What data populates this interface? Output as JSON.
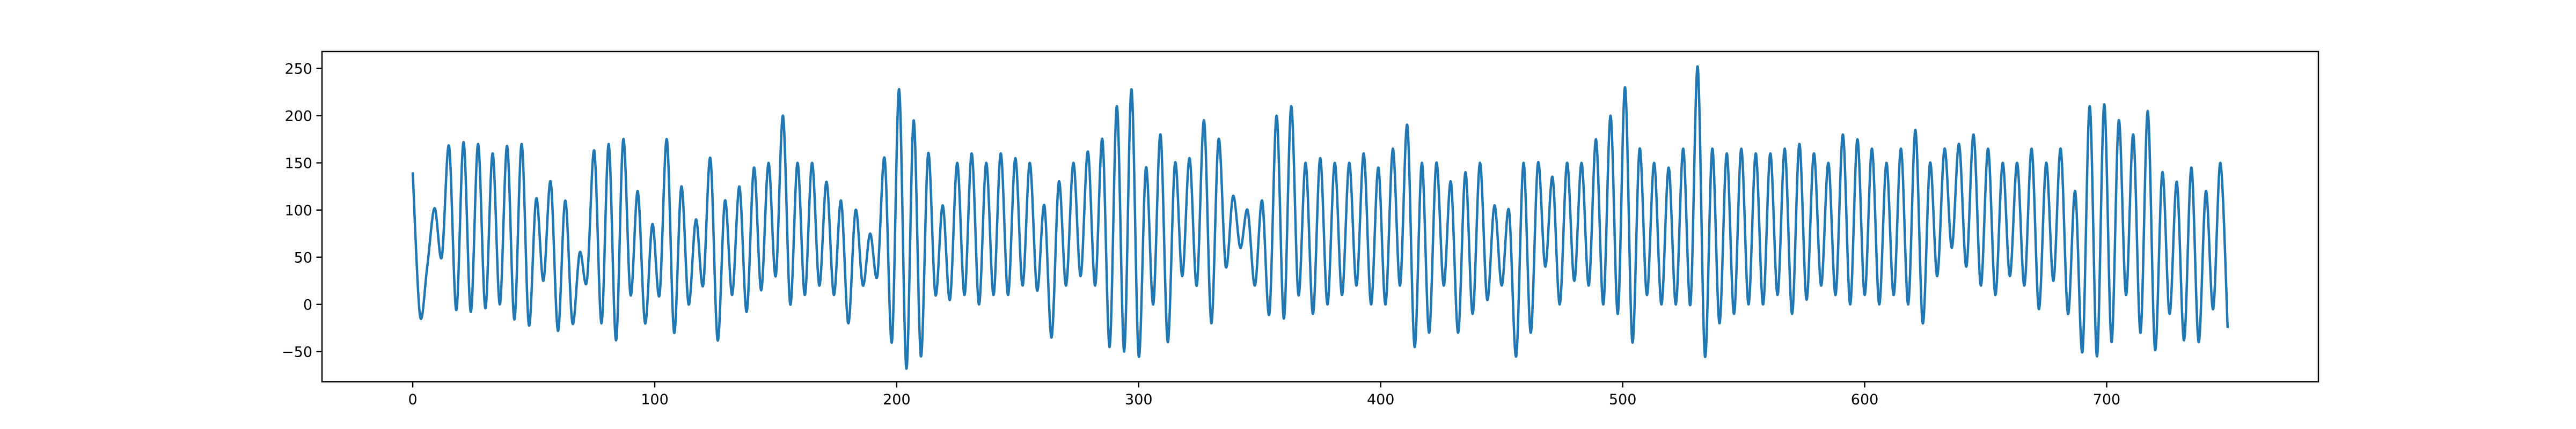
{
  "chart_data": {
    "type": "line",
    "title": "",
    "xlabel": "",
    "ylabel": "",
    "xlim": [
      -37.5,
      787.5
    ],
    "ylim": [
      -82,
      268
    ],
    "xticks": [
      0,
      100,
      200,
      300,
      400,
      500,
      600,
      700
    ],
    "xtick_labels": [
      "0",
      "100",
      "200",
      "300",
      "400",
      "500",
      "600",
      "700"
    ],
    "yticks": [
      -50,
      0,
      50,
      100,
      150,
      200,
      250
    ],
    "ytick_labels": [
      "−50",
      "0",
      "50",
      "100",
      "150",
      "200",
      "250"
    ],
    "grid": false,
    "legend": "none",
    "series": [
      {
        "color": "#1f77b4",
        "x_start": 0,
        "x_step": 3,
        "values": [
          140,
          -12,
          40,
          102,
          50,
          168,
          -6,
          172,
          -8,
          170,
          -4,
          160,
          0,
          168,
          -16,
          170,
          -22,
          112,
          25,
          130,
          -28,
          110,
          -20,
          55,
          25,
          163,
          -20,
          170,
          -38,
          175,
          10,
          120,
          -20,
          85,
          10,
          175,
          -30,
          125,
          0,
          90,
          20,
          155,
          -38,
          110,
          10,
          125,
          -8,
          145,
          15,
          150,
          30,
          200,
          0,
          150,
          10,
          150,
          20,
          130,
          10,
          110,
          -20,
          100,
          20,
          75,
          30,
          155,
          -40,
          228,
          -68,
          195,
          -55,
          160,
          10,
          105,
          5,
          150,
          10,
          160,
          0,
          150,
          10,
          160,
          10,
          155,
          20,
          150,
          15,
          105,
          -35,
          130,
          20,
          150,
          30,
          162,
          20,
          175,
          -45,
          210,
          -50,
          228,
          -55,
          145,
          0,
          180,
          -40,
          150,
          30,
          155,
          20,
          195,
          -20,
          175,
          40,
          115,
          60,
          100,
          20,
          110,
          -10,
          200,
          -15,
          210,
          10,
          150,
          -10,
          155,
          0,
          150,
          10,
          150,
          20,
          160,
          0,
          145,
          0,
          165,
          20,
          190,
          -45,
          150,
          -30,
          150,
          20,
          130,
          -30,
          140,
          -10,
          150,
          5,
          105,
          20,
          100,
          -55,
          150,
          -30,
          150,
          40,
          135,
          0,
          150,
          25,
          150,
          20,
          175,
          0,
          200,
          -10,
          230,
          -40,
          165,
          10,
          150,
          0,
          145,
          0,
          165,
          0,
          252,
          -55,
          165,
          -20,
          160,
          -10,
          165,
          0,
          160,
          0,
          160,
          10,
          165,
          -10,
          170,
          5,
          160,
          20,
          150,
          10,
          180,
          0,
          175,
          10,
          165,
          0,
          150,
          10,
          165,
          0,
          185,
          -20,
          150,
          30,
          165,
          60,
          170,
          40,
          180,
          20,
          165,
          10,
          150,
          30,
          150,
          20,
          165,
          -5,
          150,
          25,
          165,
          -10,
          120,
          -50,
          210,
          -55,
          212,
          -40,
          195,
          10,
          180,
          -30,
          205,
          -48,
          140,
          -10,
          130,
          -38,
          145,
          -40,
          120,
          -5,
          150,
          -25
        ]
      }
    ]
  }
}
